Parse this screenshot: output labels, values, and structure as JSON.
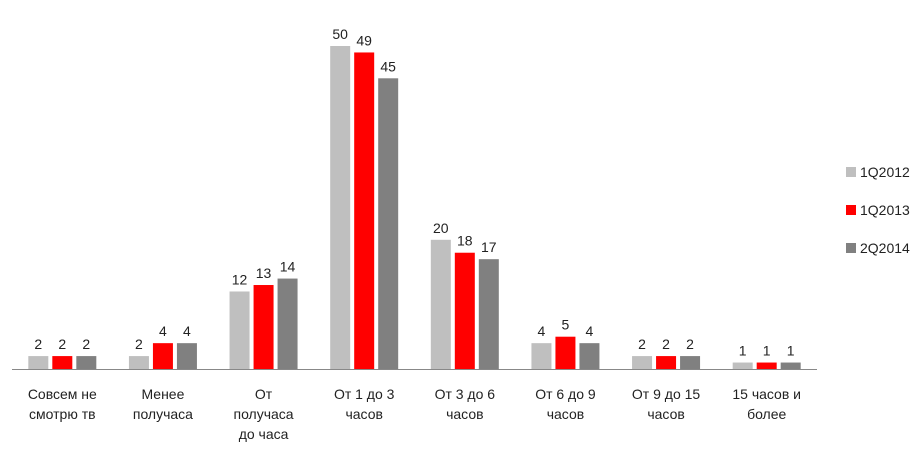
{
  "chart_data": {
    "type": "bar",
    "categories": [
      [
        "Совсем не",
        "смотрю тв"
      ],
      [
        "Менее",
        "получаса"
      ],
      [
        "От",
        "получаса",
        "до часа"
      ],
      [
        "От 1 до 3",
        "часов"
      ],
      [
        "От 3 до 6",
        "часов"
      ],
      [
        "От 6 до 9",
        "часов"
      ],
      [
        "От 9 до 15",
        "часов"
      ],
      [
        "15 часов и",
        "более"
      ]
    ],
    "series": [
      {
        "name": "1Q2012",
        "color": "#bfbfbf",
        "values": [
          2,
          2,
          12,
          50,
          20,
          4,
          2,
          1
        ]
      },
      {
        "name": "1Q2013",
        "color": "#ff0000",
        "values": [
          2,
          4,
          13,
          49,
          18,
          5,
          2,
          1
        ]
      },
      {
        "name": "2Q2014",
        "color": "#808080",
        "values": [
          2,
          4,
          14,
          45,
          17,
          4,
          2,
          1
        ]
      }
    ],
    "ylim": [
      0,
      50
    ],
    "grid": false,
    "legend": "right",
    "data_labels": true
  }
}
